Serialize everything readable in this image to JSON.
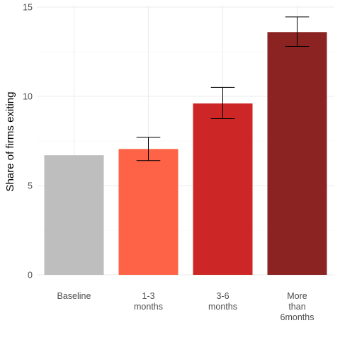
{
  "chart_data": {
    "type": "bar",
    "title": "",
    "xlabel": "",
    "ylabel": "Share of firms exiting",
    "categories": [
      "Baseline",
      "1-3\nmonths",
      "3-6\nmonths",
      "More\nthan\n6months"
    ],
    "values": [
      6.7,
      7.05,
      9.6,
      13.6
    ],
    "error_low": [
      null,
      6.4,
      8.75,
      12.8
    ],
    "error_high": [
      null,
      7.7,
      10.5,
      14.45
    ],
    "colors": [
      "#bebebe",
      "#ff6347",
      "#cd2626",
      "#8b2323"
    ],
    "ylim": [
      0,
      15
    ],
    "yticks": [
      "0",
      "5",
      "10",
      "15"
    ],
    "grid": true,
    "legend": "none"
  }
}
